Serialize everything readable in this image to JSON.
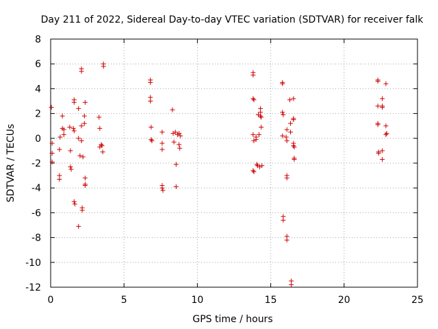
{
  "chart_data": {
    "type": "scatter",
    "title": "Day 211 of 2022, Sidereal Day-to-day VTEC variation (SDTVAR) for receiver falk",
    "xlabel": "GPS time / hours",
    "ylabel": "SDTVAR / TECUs",
    "xlim": [
      0,
      25
    ],
    "ylim": [
      -12,
      8
    ],
    "xticks": [
      0,
      5,
      10,
      15,
      20,
      25
    ],
    "yticks": [
      -12,
      -10,
      -8,
      -6,
      -4,
      -2,
      0,
      2,
      4,
      6,
      8
    ],
    "grid": true,
    "marker": "+",
    "marker_color": "#cc0000",
    "series": [
      {
        "name": "SDTVAR",
        "points": [
          [
            0.05,
            2.5
          ],
          [
            0.1,
            -0.4
          ],
          [
            0.1,
            -1.2
          ],
          [
            0.1,
            -1.9
          ],
          [
            0.6,
            -0.9
          ],
          [
            0.6,
            -3.0
          ],
          [
            0.6,
            -3.3
          ],
          [
            0.65,
            0.1
          ],
          [
            0.8,
            1.8
          ],
          [
            0.8,
            0.8
          ],
          [
            0.9,
            0.7
          ],
          [
            0.9,
            0.3
          ],
          [
            1.3,
            0.9
          ],
          [
            1.35,
            -1.0
          ],
          [
            1.35,
            -2.3
          ],
          [
            1.4,
            -2.5
          ],
          [
            1.55,
            0.8
          ],
          [
            1.6,
            0.6
          ],
          [
            1.6,
            3.1
          ],
          [
            1.6,
            2.9
          ],
          [
            1.6,
            -5.1
          ],
          [
            1.65,
            -5.3
          ],
          [
            1.9,
            -7.1
          ],
          [
            1.9,
            2.4
          ],
          [
            1.9,
            0.0
          ],
          [
            2.0,
            -1.4
          ],
          [
            2.1,
            5.6
          ],
          [
            2.1,
            5.4
          ],
          [
            2.1,
            1.0
          ],
          [
            2.1,
            -0.2
          ],
          [
            2.15,
            -5.6
          ],
          [
            2.15,
            -5.8
          ],
          [
            2.2,
            -1.5
          ],
          [
            2.3,
            1.2
          ],
          [
            2.3,
            1.8
          ],
          [
            2.35,
            2.9
          ],
          [
            2.35,
            -3.2
          ],
          [
            2.35,
            -3.7
          ],
          [
            2.35,
            -3.8
          ],
          [
            3.3,
            1.7
          ],
          [
            3.35,
            0.8
          ],
          [
            3.35,
            -0.7
          ],
          [
            3.45,
            -0.5
          ],
          [
            3.5,
            -0.6
          ],
          [
            3.55,
            -1.1
          ],
          [
            3.6,
            6.0
          ],
          [
            3.6,
            5.8
          ],
          [
            6.8,
            4.7
          ],
          [
            6.8,
            4.5
          ],
          [
            6.8,
            3.3
          ],
          [
            6.8,
            3.0
          ],
          [
            6.85,
            0.9
          ],
          [
            6.85,
            -0.1
          ],
          [
            6.9,
            -0.2
          ],
          [
            7.6,
            0.5
          ],
          [
            7.6,
            -0.4
          ],
          [
            7.6,
            -0.9
          ],
          [
            7.6,
            -3.8
          ],
          [
            7.6,
            -4.0
          ],
          [
            7.65,
            -4.2
          ],
          [
            8.3,
            2.3
          ],
          [
            8.35,
            0.4
          ],
          [
            8.4,
            -0.3
          ],
          [
            8.5,
            0.5
          ],
          [
            8.55,
            -2.1
          ],
          [
            8.55,
            -3.9
          ],
          [
            8.65,
            0.3
          ],
          [
            8.75,
            0.4
          ],
          [
            8.75,
            -0.5
          ],
          [
            8.8,
            -0.8
          ],
          [
            8.85,
            0.2
          ],
          [
            13.8,
            5.3
          ],
          [
            13.8,
            5.1
          ],
          [
            13.8,
            3.2
          ],
          [
            13.85,
            3.1
          ],
          [
            13.8,
            0.3
          ],
          [
            13.85,
            -0.2
          ],
          [
            13.8,
            -2.6
          ],
          [
            13.85,
            -2.7
          ],
          [
            14.0,
            0.1
          ],
          [
            14.0,
            -0.1
          ],
          [
            14.05,
            -2.1
          ],
          [
            14.1,
            -2.2
          ],
          [
            14.15,
            1.9
          ],
          [
            14.2,
            0.3
          ],
          [
            14.25,
            -2.3
          ],
          [
            14.3,
            2.4
          ],
          [
            14.3,
            2.1
          ],
          [
            14.3,
            1.8
          ],
          [
            14.35,
            1.7
          ],
          [
            14.35,
            0.9
          ],
          [
            14.4,
            -2.2
          ],
          [
            15.8,
            4.5
          ],
          [
            15.8,
            4.4
          ],
          [
            15.8,
            2.1
          ],
          [
            15.85,
            1.9
          ],
          [
            15.8,
            0.2
          ],
          [
            15.85,
            -6.3
          ],
          [
            15.85,
            -6.6
          ],
          [
            16.05,
            0.1
          ],
          [
            16.1,
            0.7
          ],
          [
            16.1,
            -0.2
          ],
          [
            16.1,
            -3.0
          ],
          [
            16.1,
            -3.2
          ],
          [
            16.1,
            -7.9
          ],
          [
            16.1,
            -8.2
          ],
          [
            16.3,
            3.1
          ],
          [
            16.35,
            1.2
          ],
          [
            16.35,
            0.5
          ],
          [
            16.4,
            -11.5
          ],
          [
            16.4,
            -11.8
          ],
          [
            16.55,
            3.2
          ],
          [
            16.55,
            1.6
          ],
          [
            16.55,
            1.5
          ],
          [
            16.55,
            -0.4
          ],
          [
            16.55,
            -0.6
          ],
          [
            16.6,
            -0.7
          ],
          [
            16.6,
            -1.6
          ],
          [
            16.6,
            -1.7
          ],
          [
            22.3,
            4.7
          ],
          [
            22.3,
            4.6
          ],
          [
            22.3,
            2.6
          ],
          [
            22.3,
            1.2
          ],
          [
            22.3,
            1.1
          ],
          [
            22.35,
            -1.1
          ],
          [
            22.35,
            -1.2
          ],
          [
            22.6,
            3.2
          ],
          [
            22.6,
            2.6
          ],
          [
            22.6,
            2.5
          ],
          [
            22.6,
            -1.0
          ],
          [
            22.6,
            -1.7
          ],
          [
            22.85,
            4.4
          ],
          [
            22.85,
            1.0
          ],
          [
            22.85,
            0.3
          ],
          [
            22.9,
            0.4
          ]
        ]
      }
    ]
  }
}
